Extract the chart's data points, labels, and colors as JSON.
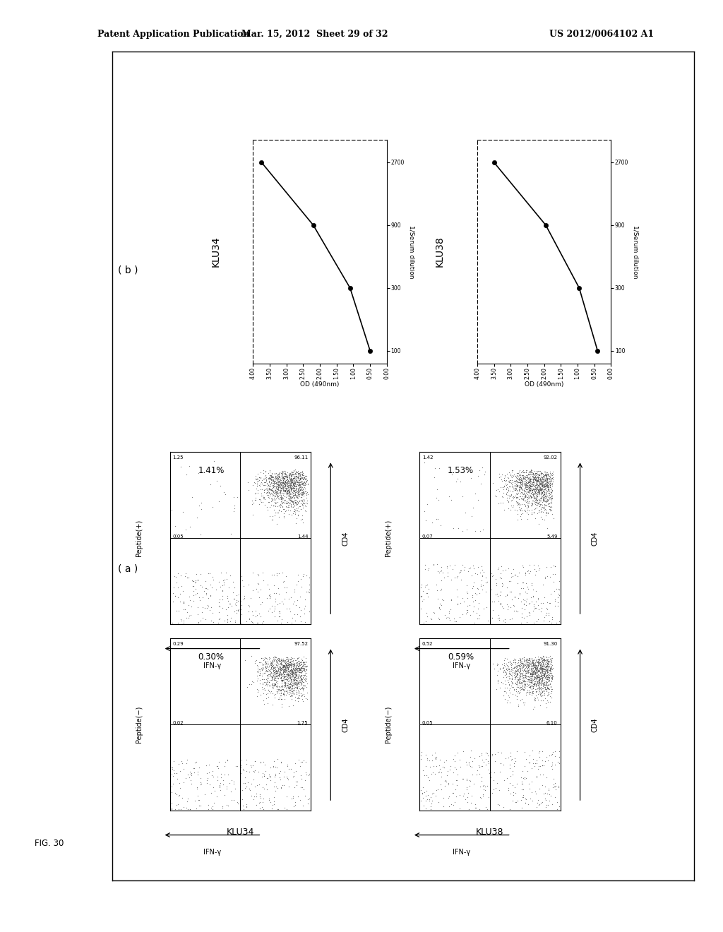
{
  "header_left": "Patent Application Publication",
  "header_mid": "Mar. 15, 2012  Sheet 29 of 32",
  "header_right": "US 2012/0064102 A1",
  "fig_label": "FIG. 30",
  "panel_a_label": "( a )",
  "panel_b_label": "( b )",
  "subjects": [
    "KLU34",
    "KLU38"
  ],
  "flow_panels": {
    "KLU34": {
      "neg": {
        "label": "Peptide(−)",
        "ul": "0.29",
        "ur": "97.52",
        "ll": "0.02",
        "lr": "1.75",
        "pct": "0.30%"
      },
      "pos": {
        "label": "Peptide(+)",
        "ul": "1.25",
        "ur": "96.11",
        "ll": "0.05",
        "lr": "1.44",
        "pct": "1.41%"
      }
    },
    "KLU38": {
      "neg": {
        "label": "Peptide(−)",
        "ul": "0.52",
        "ur": "91.30",
        "ll": "0.05",
        "lr": "6.10",
        "pct": "0.59%"
      },
      "pos": {
        "label": "Peptide(+)",
        "ul": "1.42",
        "ur": "92.02",
        "ll": "0.07",
        "lr": "5.49",
        "pct": "1.53%"
      }
    }
  },
  "elisa": {
    "KLU34": {
      "x": [
        100,
        300,
        900,
        2700
      ],
      "y": [
        0.5,
        1.1,
        2.2,
        3.75
      ]
    },
    "KLU38": {
      "x": [
        100,
        300,
        900,
        2700
      ],
      "y": [
        0.4,
        0.95,
        1.95,
        3.5
      ]
    }
  },
  "elisa_ylabel": "OD (490nm)",
  "elisa_xlabel": "1/Serum dilution",
  "elisa_yticks": [
    0.0,
    0.5,
    1.0,
    1.5,
    2.0,
    2.5,
    3.0,
    3.5,
    4.0
  ],
  "elisa_xticks": [
    100,
    300,
    900,
    2700
  ],
  "bg_color": "#ffffff",
  "scatter_color": "#444444"
}
